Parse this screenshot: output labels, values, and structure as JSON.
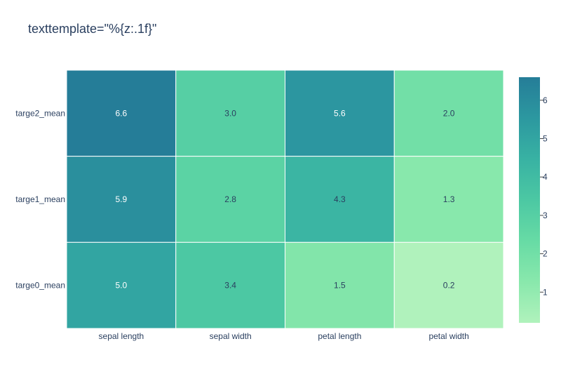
{
  "chart_data": {
    "type": "heatmap",
    "title": "texttemplate=\"%{z:.1f}\"",
    "x": [
      "sepal length",
      "sepal width",
      "petal length",
      "petal width"
    ],
    "y": [
      "targe2_mean",
      "targe1_mean",
      "targe0_mean"
    ],
    "z": [
      [
        6.6,
        3.0,
        5.6,
        2.0
      ],
      [
        5.9,
        2.8,
        4.3,
        1.3
      ],
      [
        5.0,
        3.4,
        1.5,
        0.2
      ]
    ],
    "text_format": ".1f",
    "colorscale": [
      "#b0f2bc",
      "#89e8ac",
      "#67dba5",
      "#4cc8a3",
      "#38b2a3",
      "#2c98a0",
      "#257d98"
    ],
    "colorbar": {
      "range": [
        0.2,
        6.6
      ],
      "tickvals": [
        1,
        2,
        3,
        4,
        5,
        6
      ],
      "ticktext": [
        "1",
        "2",
        "3",
        "4",
        "5",
        "6"
      ]
    },
    "text_colors": {
      "dark": "#2a3f5f",
      "light": "#ffffff"
    },
    "grid_color": "#ffffff",
    "axis_text_color": "#2a3f5f"
  }
}
